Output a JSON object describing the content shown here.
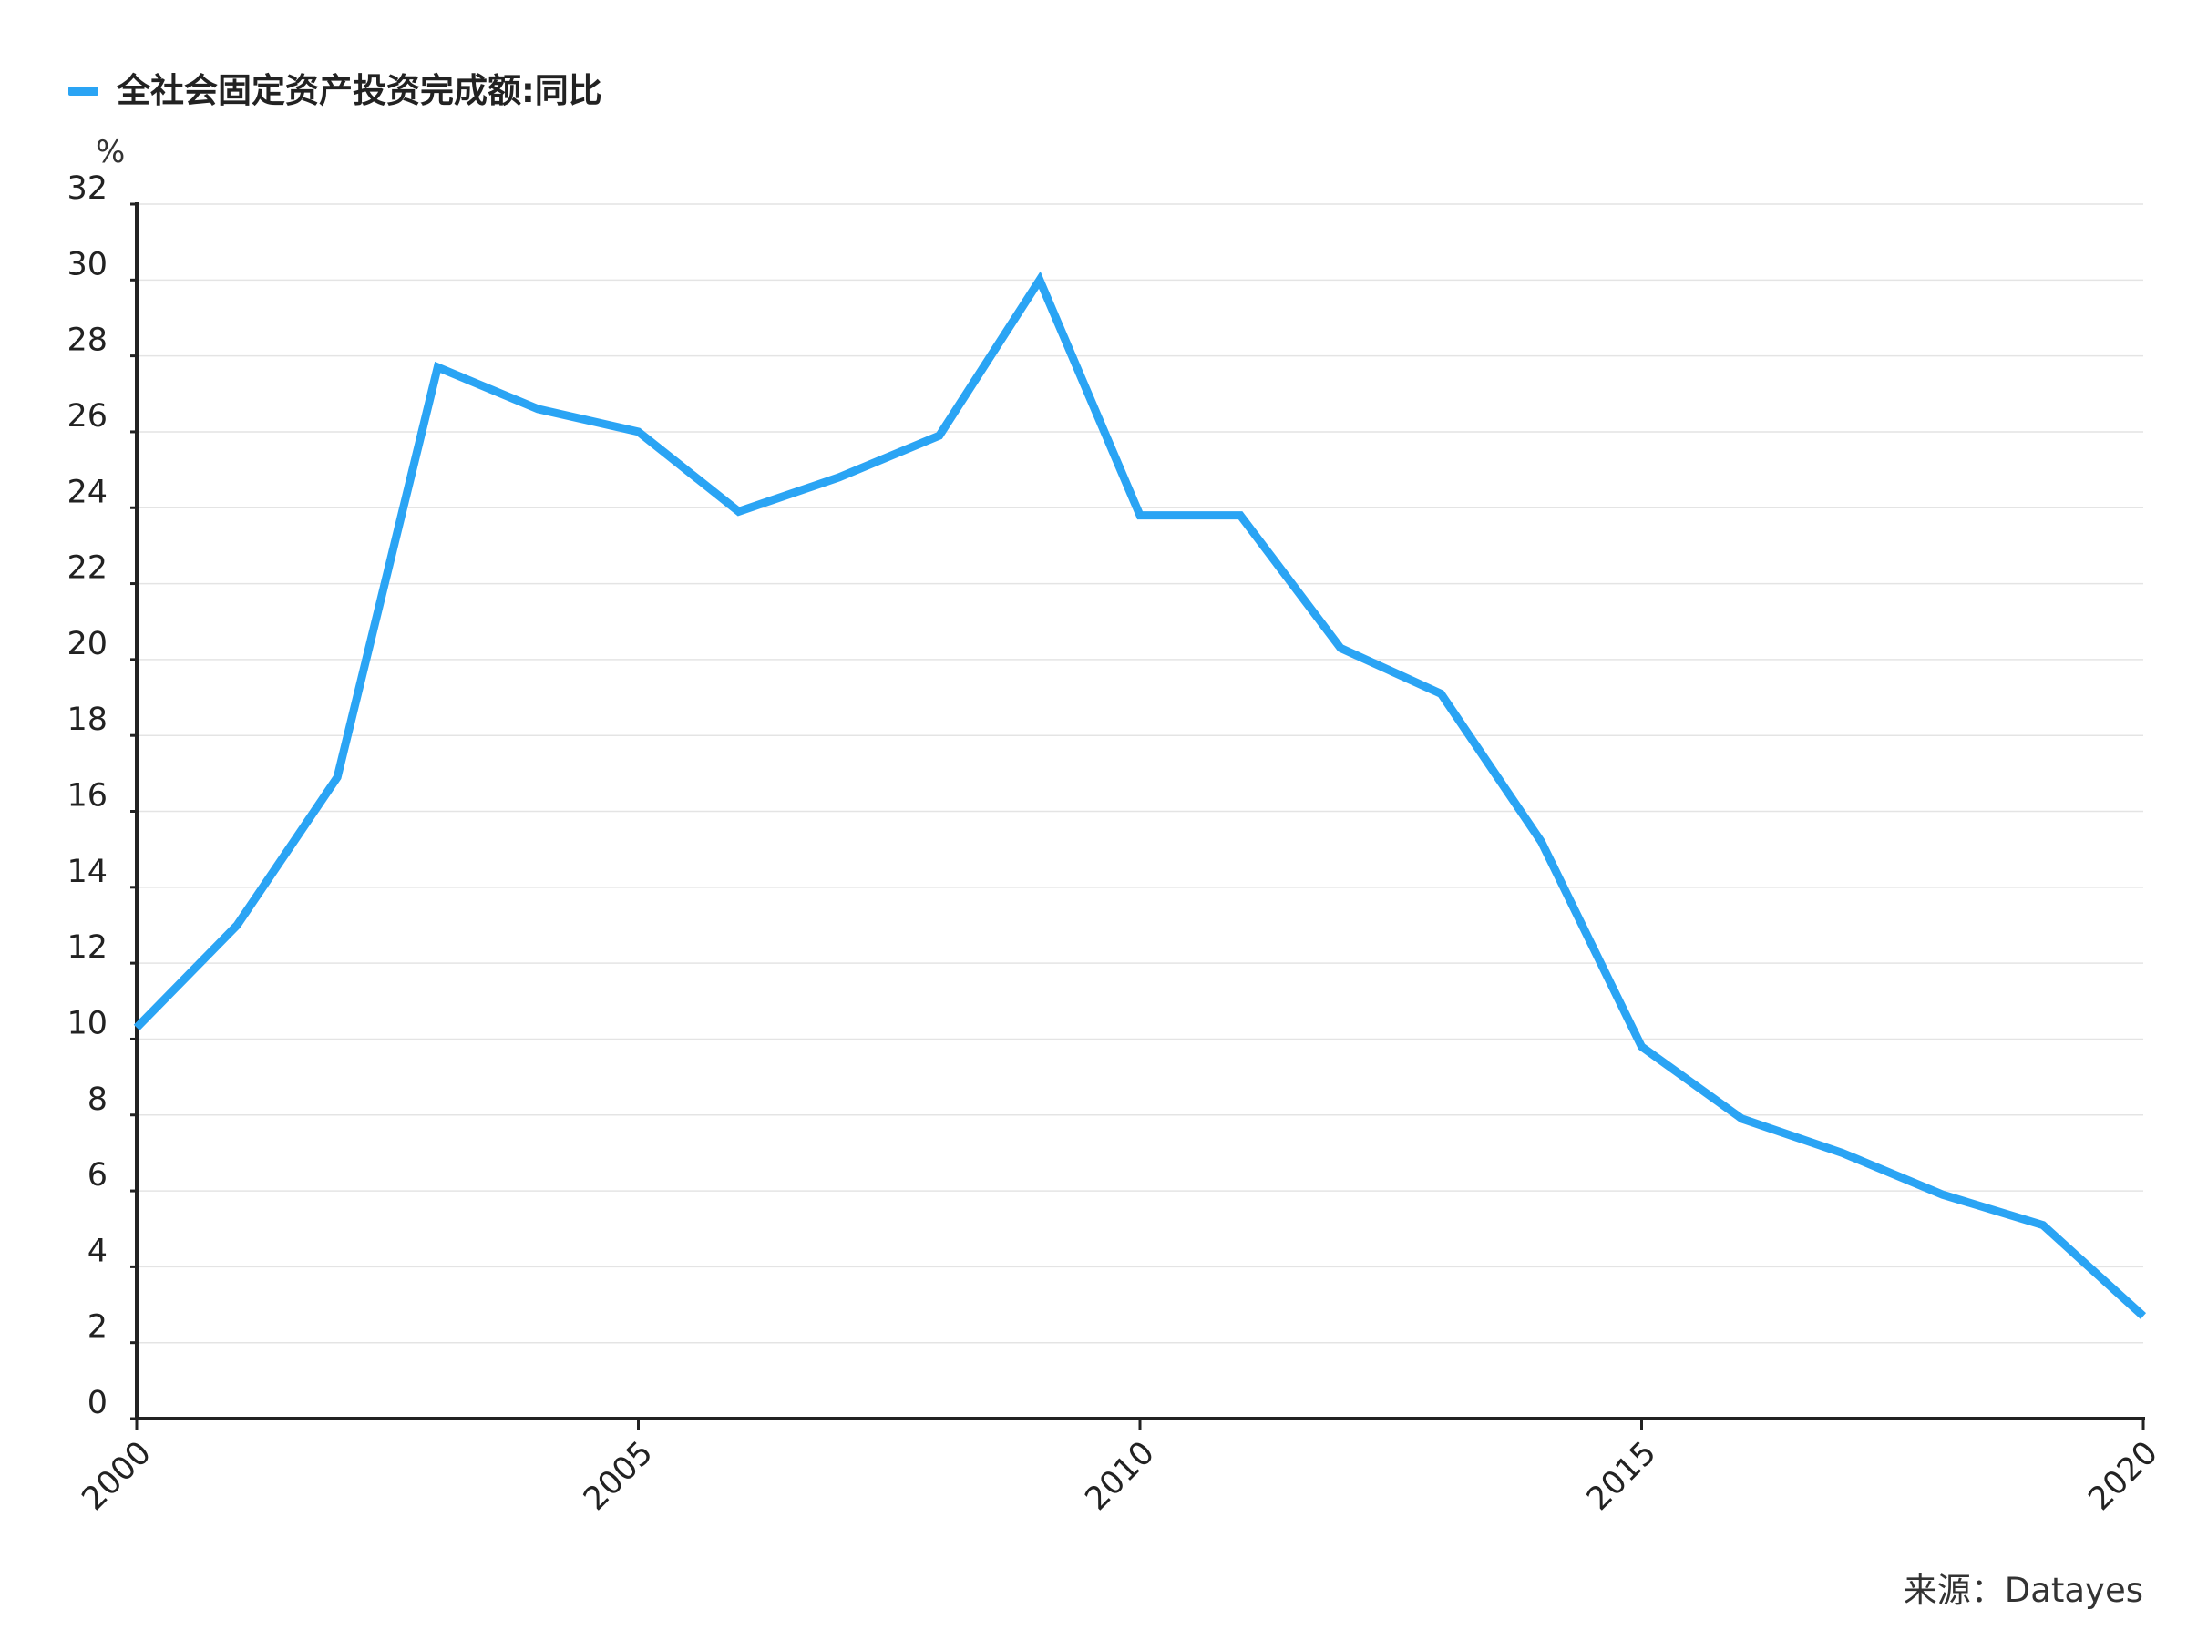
{
  "chart_data": {
    "type": "line",
    "title": "",
    "xlabel": "",
    "ylabel": "%",
    "ylim": [
      0,
      32
    ],
    "xlim": [
      2000,
      2020
    ],
    "x_ticks": [
      "2000",
      "2005",
      "2010",
      "2015",
      "2020"
    ],
    "y_ticks": [
      "0",
      "2",
      "4",
      "6",
      "8",
      "10",
      "12",
      "14",
      "16",
      "18",
      "20",
      "22",
      "24",
      "26",
      "28",
      "30",
      "32"
    ],
    "grid": true,
    "legend_position": "top-left",
    "series": [
      {
        "name": "全社会固定资产投资完成额:同比",
        "color": "#2aa4f4",
        "x": [
          2000,
          2001,
          2002,
          2003,
          2004,
          2005,
          2006,
          2007,
          2008,
          2009,
          2010,
          2011,
          2012,
          2013,
          2014,
          2015,
          2016,
          2017,
          2018,
          2019,
          2020
        ],
        "values": [
          10.3,
          13.0,
          16.9,
          27.7,
          26.6,
          26.0,
          23.9,
          24.8,
          25.9,
          30.0,
          23.8,
          23.8,
          20.3,
          19.1,
          15.2,
          9.8,
          7.9,
          7.0,
          5.9,
          5.1,
          2.7
        ]
      }
    ],
    "source": "来源：Datayes"
  }
}
